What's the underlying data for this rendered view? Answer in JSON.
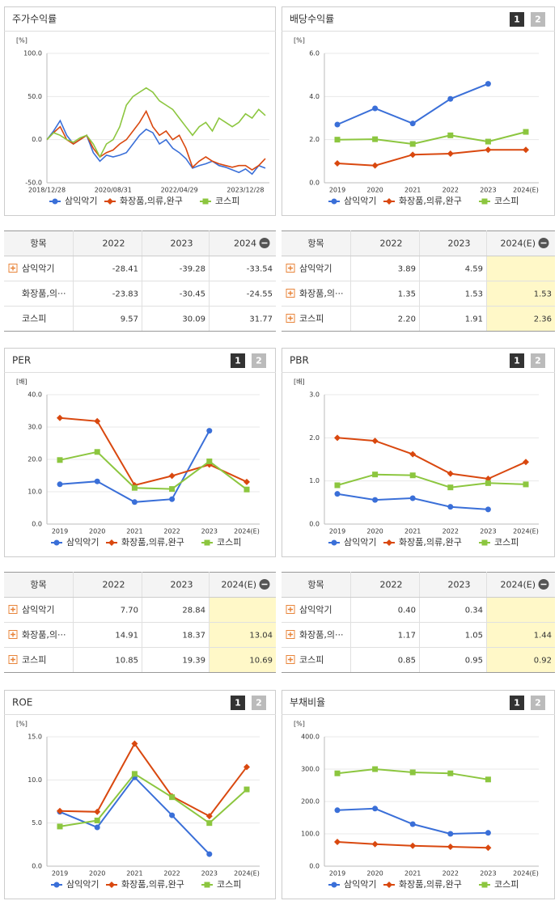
{
  "chart_data": [
    {
      "type": "line",
      "title": "주가수익률",
      "y_unit": "[%]",
      "markers": false,
      "categories": [
        "2018/12/28",
        null,
        null,
        null,
        null,
        null,
        null,
        null,
        null,
        null,
        "2020/08/31",
        null,
        null,
        null,
        null,
        null,
        null,
        null,
        null,
        null,
        "2022/04/29",
        null,
        null,
        null,
        null,
        null,
        null,
        null,
        null,
        null,
        "2023/12/28",
        null,
        null,
        null
      ],
      "ylim": [
        -50,
        100
      ],
      "yticks": [
        {
          "value": -50,
          "label": "-50.0"
        },
        {
          "value": 0,
          "label": "0.0"
        },
        {
          "value": 50,
          "label": "50.0"
        },
        {
          "value": 100,
          "label": "100.0"
        }
      ],
      "grid": true,
      "series": [
        {
          "name": "삼익악기",
          "color": "#3a6fd8",
          "marker": "circle",
          "values": [
            0,
            10,
            22,
            5,
            -5,
            0,
            5,
            -15,
            -25,
            -18,
            -20,
            -18,
            -15,
            -5,
            5,
            12,
            8,
            -5,
            0,
            -10,
            -15,
            -22,
            -33,
            -30,
            -28,
            -25,
            -30,
            -32,
            -35,
            -38,
            -34,
            -40,
            -30,
            -33
          ]
        },
        {
          "name": "화장품,의류,완구",
          "color": "#d9480f",
          "marker": "diamond",
          "values": [
            0,
            8,
            15,
            0,
            -5,
            0,
            5,
            -10,
            -20,
            -15,
            -12,
            -5,
            0,
            10,
            20,
            33,
            15,
            5,
            10,
            0,
            5,
            -10,
            -32,
            -25,
            -20,
            -25,
            -28,
            -30,
            -32,
            -30,
            -30,
            -35,
            -30,
            -22
          ]
        },
        {
          "name": "코스피",
          "color": "#8cc63f",
          "marker": "square",
          "values": [
            0,
            8,
            5,
            0,
            -3,
            2,
            5,
            -5,
            -20,
            -5,
            0,
            15,
            40,
            50,
            55,
            60,
            55,
            45,
            40,
            35,
            25,
            15,
            5,
            15,
            20,
            10,
            25,
            20,
            15,
            20,
            30,
            25,
            35,
            28
          ]
        }
      ]
    },
    {
      "type": "line",
      "title": "배당수익률",
      "tabs": [
        "1",
        "2"
      ],
      "y_unit": "[%]",
      "markers": true,
      "categories": [
        "2019",
        "2020",
        "2021",
        "2022",
        "2023",
        "2024(E)"
      ],
      "ylim": [
        0,
        6
      ],
      "yticks": [
        {
          "value": 0,
          "label": "0.0"
        },
        {
          "value": 2,
          "label": "2.0"
        },
        {
          "value": 4,
          "label": "4.0"
        },
        {
          "value": 6,
          "label": "6.0"
        }
      ],
      "grid": true,
      "series": [
        {
          "name": "삼익악기",
          "color": "#3a6fd8",
          "marker": "circle",
          "values": [
            2.7,
            3.45,
            2.75,
            3.89,
            4.59,
            null
          ]
        },
        {
          "name": "화장품,의류,완구",
          "color": "#d9480f",
          "marker": "diamond",
          "values": [
            0.9,
            0.8,
            1.3,
            1.35,
            1.53,
            1.53
          ]
        },
        {
          "name": "코스피",
          "color": "#8cc63f",
          "marker": "square",
          "values": [
            2.0,
            2.02,
            1.8,
            2.2,
            1.91,
            2.36
          ]
        }
      ]
    },
    {
      "type": "line",
      "title": "PER",
      "tabs": [
        "1",
        "2"
      ],
      "y_unit": "[배]",
      "markers": true,
      "categories": [
        "2019",
        "2020",
        "2021",
        "2022",
        "2023",
        "2024(E)"
      ],
      "ylim": [
        0,
        40
      ],
      "yticks": [
        {
          "value": 0,
          "label": "0.0"
        },
        {
          "value": 10,
          "label": "10.0"
        },
        {
          "value": 20,
          "label": "20.0"
        },
        {
          "value": 30,
          "label": "30.0"
        },
        {
          "value": 40,
          "label": "40.0"
        }
      ],
      "grid": true,
      "series": [
        {
          "name": "삼익악기",
          "color": "#3a6fd8",
          "marker": "circle",
          "values": [
            12.3,
            13.2,
            6.8,
            7.7,
            28.84,
            null
          ]
        },
        {
          "name": "화장품,의류,완구",
          "color": "#d9480f",
          "marker": "diamond",
          "values": [
            32.8,
            31.8,
            12,
            14.91,
            18.37,
            13.04
          ]
        },
        {
          "name": "코스피",
          "color": "#8cc63f",
          "marker": "square",
          "values": [
            19.8,
            22.3,
            11.2,
            10.85,
            19.39,
            10.69
          ]
        }
      ]
    },
    {
      "type": "line",
      "title": "PBR",
      "tabs": [
        "1",
        "2"
      ],
      "y_unit": "[배]",
      "markers": true,
      "categories": [
        "2019",
        "2020",
        "2021",
        "2022",
        "2023",
        "2024(E)"
      ],
      "ylim": [
        0,
        3
      ],
      "yticks": [
        {
          "value": 0,
          "label": "0.0"
        },
        {
          "value": 1,
          "label": "1.0"
        },
        {
          "value": 2,
          "label": "2.0"
        },
        {
          "value": 3,
          "label": "3.0"
        }
      ],
      "grid": true,
      "series": [
        {
          "name": "삼익악기",
          "color": "#3a6fd8",
          "marker": "circle",
          "values": [
            0.7,
            0.56,
            0.6,
            0.4,
            0.34,
            null
          ]
        },
        {
          "name": "화장품,의류,완구",
          "color": "#d9480f",
          "marker": "diamond",
          "values": [
            2.0,
            1.93,
            1.62,
            1.17,
            1.05,
            1.44
          ]
        },
        {
          "name": "코스피",
          "color": "#8cc63f",
          "marker": "square",
          "values": [
            0.9,
            1.15,
            1.13,
            0.85,
            0.95,
            0.92
          ]
        }
      ]
    },
    {
      "type": "line",
      "title": "ROE",
      "tabs": [
        "1",
        "2"
      ],
      "y_unit": "[%]",
      "markers": true,
      "categories": [
        "2019",
        "2020",
        "2021",
        "2022",
        "2023",
        "2024(E)"
      ],
      "ylim": [
        0,
        15
      ],
      "yticks": [
        {
          "value": 0,
          "label": "0.0"
        },
        {
          "value": 5,
          "label": "5.0"
        },
        {
          "value": 10,
          "label": "10.0"
        },
        {
          "value": 15,
          "label": "15.0"
        }
      ],
      "grid": true,
      "series": [
        {
          "name": "삼익악기",
          "color": "#3a6fd8",
          "marker": "circle",
          "values": [
            6.3,
            4.5,
            10.3,
            5.9,
            1.4,
            null
          ]
        },
        {
          "name": "화장품,의류,완구",
          "color": "#d9480f",
          "marker": "diamond",
          "values": [
            6.4,
            6.3,
            14.2,
            8.1,
            5.8,
            11.5
          ]
        },
        {
          "name": "코스피",
          "color": "#8cc63f",
          "marker": "square",
          "values": [
            4.6,
            5.3,
            10.7,
            8.0,
            5.0,
            8.9
          ]
        }
      ]
    },
    {
      "type": "line",
      "title": "부채비율",
      "tabs": [
        "1",
        "2"
      ],
      "y_unit": "[%]",
      "markers": true,
      "categories": [
        "2019",
        "2020",
        "2021",
        "2022",
        "2023",
        "2024(E)"
      ],
      "ylim": [
        0,
        400
      ],
      "yticks": [
        {
          "value": 0,
          "label": "0.0"
        },
        {
          "value": 100,
          "label": "100.0"
        },
        {
          "value": 200,
          "label": "200.0"
        },
        {
          "value": 300,
          "label": "300.0"
        },
        {
          "value": 400,
          "label": "400.0"
        }
      ],
      "grid": true,
      "series": [
        {
          "name": "삼익악기",
          "color": "#3a6fd8",
          "marker": "circle",
          "values": [
            173,
            178,
            130,
            100,
            103,
            null
          ]
        },
        {
          "name": "화장품,의류,완구",
          "color": "#d9480f",
          "marker": "diamond",
          "values": [
            75,
            68,
            63,
            60,
            57,
            null
          ]
        },
        {
          "name": "코스피",
          "color": "#8cc63f",
          "marker": "square",
          "values": [
            287,
            300,
            290,
            287,
            268,
            null
          ]
        }
      ]
    }
  ],
  "tables": [
    {
      "columns": [
        "항목",
        "2022",
        "2023",
        "2024"
      ],
      "highlight_last": false,
      "rows": [
        {
          "name": "삼익악기",
          "icon": true,
          "values": [
            "-28.41",
            "-39.28",
            "-33.54"
          ]
        },
        {
          "name": "화장품,의···",
          "icon": false,
          "values": [
            "-23.83",
            "-30.45",
            "-24.55"
          ]
        },
        {
          "name": "코스피",
          "icon": false,
          "values": [
            "9.57",
            "30.09",
            "31.77"
          ]
        }
      ]
    },
    {
      "columns": [
        "항목",
        "2022",
        "2023",
        "2024(E)"
      ],
      "highlight_last": true,
      "rows": [
        {
          "name": "삼익악기",
          "icon": true,
          "values": [
            "3.89",
            "4.59",
            null
          ]
        },
        {
          "name": "화장품,의···",
          "icon": true,
          "values": [
            "1.35",
            "1.53",
            "1.53"
          ]
        },
        {
          "name": "코스피",
          "icon": true,
          "values": [
            "2.20",
            "1.91",
            "2.36"
          ]
        }
      ]
    },
    {
      "columns": [
        "항목",
        "2022",
        "2023",
        "2024(E)"
      ],
      "highlight_last": true,
      "rows": [
        {
          "name": "삼익악기",
          "icon": true,
          "values": [
            "7.70",
            "28.84",
            null
          ]
        },
        {
          "name": "화장품,의···",
          "icon": true,
          "values": [
            "14.91",
            "18.37",
            "13.04"
          ]
        },
        {
          "name": "코스피",
          "icon": true,
          "values": [
            "10.85",
            "19.39",
            "10.69"
          ]
        }
      ]
    },
    {
      "columns": [
        "항목",
        "2022",
        "2023",
        "2024(E)"
      ],
      "highlight_last": true,
      "rows": [
        {
          "name": "삼익악기",
          "icon": true,
          "values": [
            "0.40",
            "0.34",
            null
          ]
        },
        {
          "name": "화장품,의···",
          "icon": true,
          "values": [
            "1.17",
            "1.05",
            "1.44"
          ]
        },
        {
          "name": "코스피",
          "icon": true,
          "values": [
            "0.85",
            "0.95",
            "0.92"
          ]
        }
      ]
    }
  ]
}
